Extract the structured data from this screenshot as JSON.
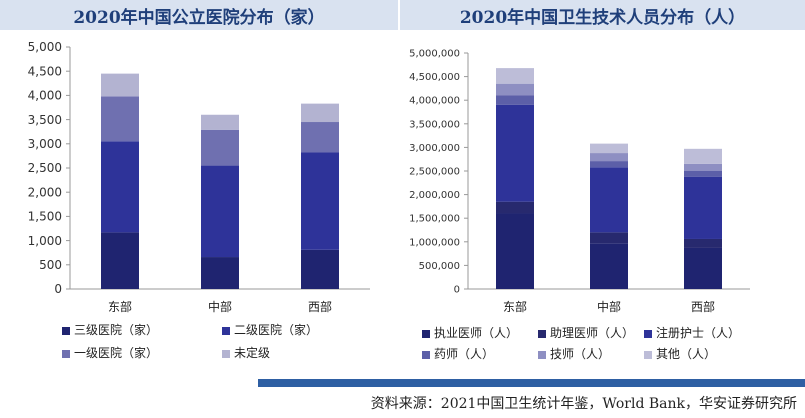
{
  "headers": {
    "left_title": "2020年中国公立医院分布（家）",
    "right_title": "2020年中国卫生技术人员分布（人）"
  },
  "footer": {
    "source": "资料来源：2021中国卫生统计年鉴，World Bank，华安证券研究所"
  },
  "colors": {
    "header_bg": "#d9e2f0",
    "header_text": "#1f3f7a",
    "footer_bar": "#2e5fa3"
  },
  "chart_data": [
    {
      "type": "bar",
      "stacked": true,
      "title": "2020年中国公立医院分布（家）",
      "categories": [
        "东部",
        "中部",
        "西部"
      ],
      "ylim": [
        0,
        5000
      ],
      "yticks": [
        0,
        500,
        1000,
        1500,
        2000,
        2500,
        3000,
        3500,
        4000,
        4500,
        5000
      ],
      "ytick_labels": [
        "0",
        "500",
        "1,000",
        "1,500",
        "2,000",
        "2,500",
        "3,000",
        "3,500",
        "4,000",
        "4,500",
        "5,000"
      ],
      "legend_position": "bottom",
      "series": [
        {
          "name": "三级医院（家）",
          "color": "#1f2470",
          "values": [
            1170,
            660,
            810
          ]
        },
        {
          "name": "二级医院（家）",
          "color": "#2e3399",
          "values": [
            1880,
            1890,
            2010
          ]
        },
        {
          "name": "一级医院（家）",
          "color": "#6f70b0",
          "values": [
            930,
            740,
            630
          ]
        },
        {
          "name": "未定级",
          "color": "#b3b3d1",
          "values": [
            470,
            310,
            380
          ]
        }
      ]
    },
    {
      "type": "bar",
      "stacked": true,
      "title": "2020年中国卫生技术人员分布（人）",
      "categories": [
        "东部",
        "中部",
        "西部"
      ],
      "ylim": [
        0,
        5000000
      ],
      "yticks": [
        0,
        500000,
        1000000,
        1500000,
        2000000,
        2500000,
        3000000,
        3500000,
        4000000,
        4500000,
        5000000
      ],
      "ytick_labels": [
        "0",
        "500,000",
        "1,000,000",
        "1,500,000",
        "2,000,000",
        "2,500,000",
        "3,000,000",
        "3,500,000",
        "4,000,000",
        "4,500,000",
        "5,000,000"
      ],
      "legend_position": "bottom",
      "series": [
        {
          "name": "执业医师（人）",
          "color": "#1f2470",
          "values": [
            1600000,
            970000,
            870000
          ]
        },
        {
          "name": "助理医师（人）",
          "color": "#27296e",
          "values": [
            250000,
            230000,
            190000
          ]
        },
        {
          "name": "注册护士（人）",
          "color": "#2e3399",
          "values": [
            2050000,
            1380000,
            1320000
          ]
        },
        {
          "name": "药师（人）",
          "color": "#5c5fa8",
          "values": [
            200000,
            130000,
            120000
          ]
        },
        {
          "name": "技师（人）",
          "color": "#8e8fc2",
          "values": [
            250000,
            170000,
            150000
          ]
        },
        {
          "name": "其他（人）",
          "color": "#bdbdd8",
          "values": [
            330000,
            200000,
            320000
          ]
        }
      ]
    }
  ]
}
